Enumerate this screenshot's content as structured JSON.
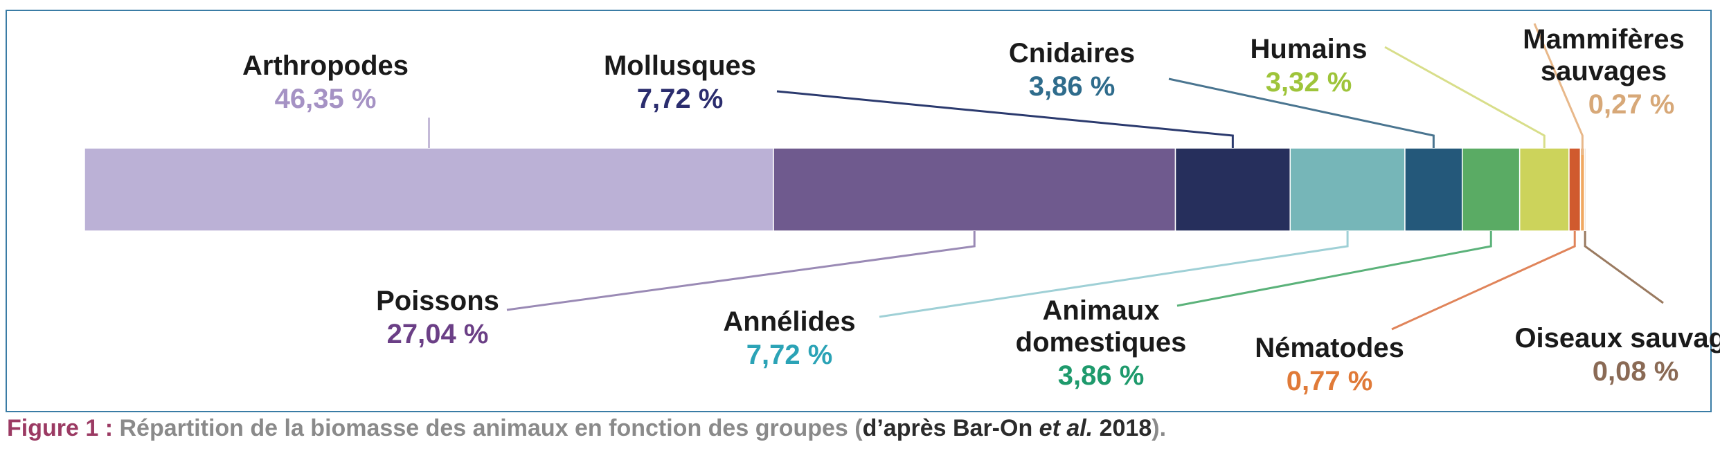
{
  "chart_data": {
    "type": "bar",
    "orientation": "stacked-horizontal",
    "categories": [
      "Arthropodes",
      "Poissons",
      "Mollusques",
      "Annélides",
      "Cnidaires",
      "Animaux domestiques",
      "Humains",
      "Nématodes",
      "Mammifères sauvages",
      "Oiseaux sauvages"
    ],
    "values": [
      46.35,
      27.04,
      7.72,
      7.72,
      3.86,
      3.86,
      3.32,
      0.77,
      0.27,
      0.08
    ],
    "value_labels": [
      "46,35 %",
      "27,04 %",
      "7,72 %",
      "7,72 %",
      "3,86 %",
      "3,86 %",
      "3,32 %",
      "0,77 %",
      "0,27 %",
      "0,08 %"
    ],
    "name_lines": [
      [
        "Arthropodes"
      ],
      [
        "Poissons"
      ],
      [
        "Mollusques"
      ],
      [
        "Annélides"
      ],
      [
        "Cnidaires"
      ],
      [
        "Animaux",
        "domestiques"
      ],
      [
        "Humains"
      ],
      [
        "Nématodes"
      ],
      [
        "Mammifères",
        "sauvages"
      ],
      [
        "Oiseaux sauvages"
      ]
    ],
    "segment_colors": [
      "#bbb1d6",
      "#6f5a8e",
      "#262f5c",
      "#76b6b8",
      "#24587a",
      "#5aab64",
      "#ccd35b",
      "#d05a2e",
      "#f0a860",
      "#b59a80"
    ],
    "label_colors": [
      "#a592c4",
      "#6b3f86",
      "#2b2d6e",
      "#2ba3b6",
      "#2f6c8c",
      "#1e9a6c",
      "#9ec43a",
      "#e07a38",
      "#d7a878",
      "#8a6a55"
    ],
    "line_colors": [
      "#c4bad8",
      "#9a8ab5",
      "#2b3a6e",
      "#9fd0d6",
      "#4a7590",
      "#5bb27a",
      "#d8de8a",
      "#e0845a",
      "#e8b88a",
      "#9a7a60"
    ]
  },
  "caption": {
    "figure_label": "Figure 1 :",
    "text": "Répartition de la biomasse des animaux en fonction des groupes (",
    "source_prefix": "d’après Bar-On ",
    "source_italic": "et al.",
    "source_year": " 2018",
    "close": ")."
  }
}
